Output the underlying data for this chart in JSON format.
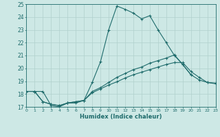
{
  "xlabel": "Humidex (Indice chaleur)",
  "bg_color": "#cde8e5",
  "grid_color": "#b0d0cc",
  "line_color": "#1e6b6b",
  "xlim": [
    0,
    23
  ],
  "ylim": [
    17,
    25
  ],
  "xticks": [
    0,
    1,
    2,
    3,
    4,
    5,
    6,
    7,
    8,
    9,
    10,
    11,
    12,
    13,
    14,
    15,
    16,
    17,
    18,
    19,
    20,
    21,
    22,
    23
  ],
  "yticks": [
    17,
    18,
    19,
    20,
    21,
    22,
    23,
    24,
    25
  ],
  "line1_x": [
    0,
    1,
    2,
    3,
    4,
    5,
    6,
    7,
    8,
    9,
    10,
    11,
    12,
    13,
    14,
    15,
    16,
    17,
    18,
    19,
    20
  ],
  "line1_y": [
    18.2,
    18.2,
    18.2,
    17.1,
    17.0,
    17.3,
    17.3,
    17.5,
    18.9,
    20.5,
    23.0,
    24.85,
    24.6,
    24.3,
    23.85,
    24.1,
    23.0,
    22.0,
    21.0,
    20.3,
    19.5
  ],
  "line2_x": [
    0,
    1,
    2,
    3,
    4,
    5,
    6,
    7,
    8,
    9,
    10,
    11,
    12,
    13,
    14,
    15,
    16,
    17,
    18,
    19,
    20,
    21,
    22,
    23
  ],
  "line2_y": [
    18.2,
    18.2,
    17.4,
    17.2,
    17.1,
    17.3,
    17.4,
    17.5,
    18.2,
    18.5,
    18.9,
    19.3,
    19.6,
    19.9,
    20.1,
    20.4,
    20.6,
    20.8,
    21.05,
    20.3,
    19.5,
    19.1,
    18.9,
    18.85
  ],
  "line3_x": [
    0,
    1,
    2,
    3,
    4,
    5,
    6,
    7,
    8,
    9,
    10,
    11,
    12,
    13,
    14,
    15,
    16,
    17,
    18,
    19,
    20,
    21,
    22,
    23
  ],
  "line3_y": [
    18.2,
    18.2,
    17.4,
    17.2,
    17.1,
    17.3,
    17.4,
    17.5,
    18.1,
    18.4,
    18.7,
    18.95,
    19.25,
    19.5,
    19.7,
    19.9,
    20.1,
    20.3,
    20.45,
    20.45,
    19.75,
    19.3,
    18.9,
    18.8
  ]
}
